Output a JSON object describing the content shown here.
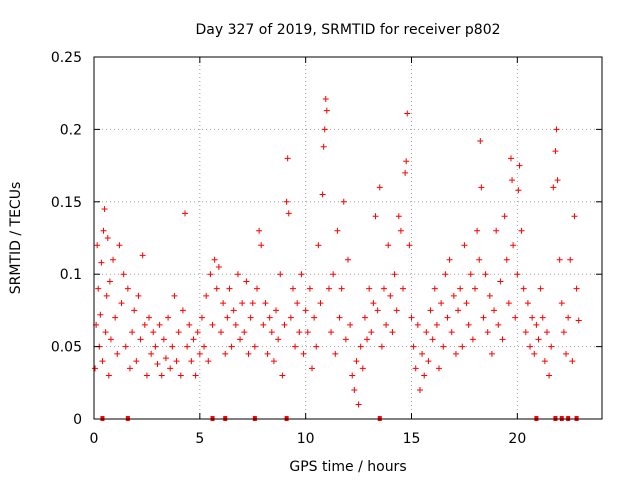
{
  "chart_data": {
    "type": "scatter",
    "title": "Day 327 of 2019, SRMTID for receiver p802",
    "xlabel": "GPS time / hours",
    "ylabel": "SRMTID / TECUs",
    "xlim": [
      0,
      24
    ],
    "ylim": [
      0,
      0.25
    ],
    "x_ticks": [
      0,
      5,
      10,
      15,
      20
    ],
    "x_tick_labels": [
      "0",
      "5",
      "10",
      "15",
      "20"
    ],
    "y_ticks": [
      0,
      0.05,
      0.1,
      0.15,
      0.2,
      0.25
    ],
    "y_tick_labels": [
      "0",
      "0.05",
      "0.1",
      "0.15",
      "0.2",
      "0.25"
    ],
    "grid": true,
    "marker": "+",
    "color": "#ff0000",
    "series": [
      {
        "name": "SRMTID",
        "points": [
          [
            0.05,
            0.035
          ],
          [
            0.1,
            0.065
          ],
          [
            0.15,
            0.12
          ],
          [
            0.2,
            0.09
          ],
          [
            0.25,
            0.05
          ],
          [
            0.3,
            0.072
          ],
          [
            0.35,
            0.108
          ],
          [
            0.4,
            0.04
          ],
          [
            0.45,
            0.13
          ],
          [
            0.5,
            0.145
          ],
          [
            0.55,
            0.06
          ],
          [
            0.6,
            0.085
          ],
          [
            0.65,
            0.125
          ],
          [
            0.7,
            0.03
          ],
          [
            0.75,
            0.095
          ],
          [
            0.8,
            0.055
          ],
          [
            0.9,
            0.11
          ],
          [
            1.0,
            0.07
          ],
          [
            1.1,
            0.045
          ],
          [
            1.2,
            0.12
          ],
          [
            1.3,
            0.08
          ],
          [
            1.4,
            0.1
          ],
          [
            1.5,
            0.05
          ],
          [
            1.6,
            0.09
          ],
          [
            1.7,
            0.035
          ],
          [
            1.8,
            0.06
          ],
          [
            1.9,
            0.075
          ],
          [
            2.0,
            0.04
          ],
          [
            2.1,
            0.085
          ],
          [
            2.2,
            0.055
          ],
          [
            2.3,
            0.113
          ],
          [
            2.4,
            0.065
          ],
          [
            2.5,
            0.03
          ],
          [
            2.6,
            0.07
          ],
          [
            2.7,
            0.045
          ],
          [
            2.8,
            0.06
          ],
          [
            2.9,
            0.05
          ],
          [
            3.0,
            0.038
          ],
          [
            3.1,
            0.065
          ],
          [
            3.2,
            0.03
          ],
          [
            3.3,
            0.055
          ],
          [
            3.4,
            0.042
          ],
          [
            3.5,
            0.07
          ],
          [
            3.6,
            0.035
          ],
          [
            3.7,
            0.05
          ],
          [
            3.8,
            0.085
          ],
          [
            3.9,
            0.04
          ],
          [
            4.0,
            0.06
          ],
          [
            4.1,
            0.03
          ],
          [
            4.2,
            0.075
          ],
          [
            4.3,
            0.142
          ],
          [
            4.4,
            0.05
          ],
          [
            4.5,
            0.065
          ],
          [
            4.6,
            0.04
          ],
          [
            4.7,
            0.055
          ],
          [
            4.8,
            0.03
          ],
          [
            4.9,
            0.06
          ],
          [
            5.0,
            0.045
          ],
          [
            5.1,
            0.07
          ],
          [
            5.2,
            0.05
          ],
          [
            5.3,
            0.085
          ],
          [
            5.4,
            0.04
          ],
          [
            5.5,
            0.1
          ],
          [
            5.6,
            0.065
          ],
          [
            5.7,
            0.11
          ],
          [
            5.8,
            0.09
          ],
          [
            5.9,
            0.105
          ],
          [
            6.0,
            0.06
          ],
          [
            6.1,
            0.08
          ],
          [
            6.2,
            0.045
          ],
          [
            6.3,
            0.07
          ],
          [
            6.4,
            0.09
          ],
          [
            6.5,
            0.05
          ],
          [
            6.6,
            0.075
          ],
          [
            6.7,
            0.065
          ],
          [
            6.8,
            0.1
          ],
          [
            6.9,
            0.055
          ],
          [
            7.0,
            0.08
          ],
          [
            7.1,
            0.06
          ],
          [
            7.2,
            0.095
          ],
          [
            7.3,
            0.045
          ],
          [
            7.4,
            0.07
          ],
          [
            7.5,
            0.08
          ],
          [
            7.6,
            0.05
          ],
          [
            7.7,
            0.09
          ],
          [
            7.8,
            0.13
          ],
          [
            7.9,
            0.12
          ],
          [
            8.0,
            0.065
          ],
          [
            8.1,
            0.08
          ],
          [
            8.2,
            0.045
          ],
          [
            8.3,
            0.07
          ],
          [
            8.4,
            0.06
          ],
          [
            8.5,
            0.04
          ],
          [
            8.6,
            0.075
          ],
          [
            8.7,
            0.055
          ],
          [
            8.8,
            0.1
          ],
          [
            8.9,
            0.03
          ],
          [
            9.0,
            0.065
          ],
          [
            9.1,
            0.15
          ],
          [
            9.15,
            0.18
          ],
          [
            9.2,
            0.142
          ],
          [
            9.3,
            0.07
          ],
          [
            9.4,
            0.09
          ],
          [
            9.5,
            0.05
          ],
          [
            9.6,
            0.08
          ],
          [
            9.7,
            0.06
          ],
          [
            9.8,
            0.1
          ],
          [
            9.9,
            0.045
          ],
          [
            10.0,
            0.075
          ],
          [
            10.1,
            0.06
          ],
          [
            10.2,
            0.09
          ],
          [
            10.3,
            0.035
          ],
          [
            10.4,
            0.07
          ],
          [
            10.5,
            0.05
          ],
          [
            10.6,
            0.12
          ],
          [
            10.7,
            0.08
          ],
          [
            10.8,
            0.155
          ],
          [
            10.85,
            0.188
          ],
          [
            10.9,
            0.2
          ],
          [
            10.95,
            0.221
          ],
          [
            11.0,
            0.213
          ],
          [
            11.1,
            0.09
          ],
          [
            11.2,
            0.06
          ],
          [
            11.3,
            0.1
          ],
          [
            11.4,
            0.045
          ],
          [
            11.5,
            0.13
          ],
          [
            11.6,
            0.07
          ],
          [
            11.7,
            0.09
          ],
          [
            11.8,
            0.15
          ],
          [
            11.9,
            0.055
          ],
          [
            12.0,
            0.11
          ],
          [
            12.1,
            0.065
          ],
          [
            12.2,
            0.03
          ],
          [
            12.3,
            0.02
          ],
          [
            12.4,
            0.04
          ],
          [
            12.5,
            0.01
          ],
          [
            12.6,
            0.05
          ],
          [
            12.7,
            0.035
          ],
          [
            12.8,
            0.07
          ],
          [
            12.9,
            0.055
          ],
          [
            13.0,
            0.09
          ],
          [
            13.1,
            0.06
          ],
          [
            13.2,
            0.08
          ],
          [
            13.3,
            0.14
          ],
          [
            13.4,
            0.075
          ],
          [
            13.5,
            0.16
          ],
          [
            13.6,
            0.05
          ],
          [
            13.7,
            0.09
          ],
          [
            13.8,
            0.065
          ],
          [
            13.9,
            0.12
          ],
          [
            14.0,
            0.085
          ],
          [
            14.1,
            0.06
          ],
          [
            14.2,
            0.1
          ],
          [
            14.3,
            0.075
          ],
          [
            14.4,
            0.14
          ],
          [
            14.5,
            0.13
          ],
          [
            14.6,
            0.09
          ],
          [
            14.7,
            0.17
          ],
          [
            14.75,
            0.178
          ],
          [
            14.8,
            0.211
          ],
          [
            14.9,
            0.12
          ],
          [
            15.0,
            0.07
          ],
          [
            15.1,
            0.05
          ],
          [
            15.2,
            0.035
          ],
          [
            15.3,
            0.065
          ],
          [
            15.4,
            0.02
          ],
          [
            15.5,
            0.045
          ],
          [
            15.6,
            0.03
          ],
          [
            15.7,
            0.06
          ],
          [
            15.8,
            0.04
          ],
          [
            15.9,
            0.075
          ],
          [
            16.0,
            0.055
          ],
          [
            16.1,
            0.09
          ],
          [
            16.2,
            0.065
          ],
          [
            16.3,
            0.035
          ],
          [
            16.4,
            0.08
          ],
          [
            16.5,
            0.05
          ],
          [
            16.6,
            0.1
          ],
          [
            16.7,
            0.07
          ],
          [
            16.8,
            0.11
          ],
          [
            16.9,
            0.06
          ],
          [
            17.0,
            0.085
          ],
          [
            17.1,
            0.045
          ],
          [
            17.2,
            0.075
          ],
          [
            17.3,
            0.09
          ],
          [
            17.4,
            0.05
          ],
          [
            17.5,
            0.12
          ],
          [
            17.6,
            0.08
          ],
          [
            17.7,
            0.065
          ],
          [
            17.8,
            0.1
          ],
          [
            17.9,
            0.055
          ],
          [
            18.0,
            0.09
          ],
          [
            18.1,
            0.13
          ],
          [
            18.2,
            0.11
          ],
          [
            18.25,
            0.192
          ],
          [
            18.3,
            0.16
          ],
          [
            18.4,
            0.07
          ],
          [
            18.5,
            0.1
          ],
          [
            18.6,
            0.06
          ],
          [
            18.7,
            0.085
          ],
          [
            18.8,
            0.045
          ],
          [
            18.9,
            0.075
          ],
          [
            19.0,
            0.13
          ],
          [
            19.1,
            0.065
          ],
          [
            19.2,
            0.095
          ],
          [
            19.3,
            0.055
          ],
          [
            19.4,
            0.14
          ],
          [
            19.5,
            0.11
          ],
          [
            19.6,
            0.08
          ],
          [
            19.7,
            0.18
          ],
          [
            19.75,
            0.165
          ],
          [
            19.8,
            0.12
          ],
          [
            19.9,
            0.07
          ],
          [
            20.0,
            0.1
          ],
          [
            20.05,
            0.158
          ],
          [
            20.1,
            0.175
          ],
          [
            20.2,
            0.13
          ],
          [
            20.3,
            0.09
          ],
          [
            20.4,
            0.06
          ],
          [
            20.5,
            0.08
          ],
          [
            20.6,
            0.05
          ],
          [
            20.7,
            0.07
          ],
          [
            20.8,
            0.045
          ],
          [
            20.9,
            0.065
          ],
          [
            21.0,
            0.055
          ],
          [
            21.1,
            0.09
          ],
          [
            21.2,
            0.07
          ],
          [
            21.3,
            0.04
          ],
          [
            21.4,
            0.06
          ],
          [
            21.5,
            0.03
          ],
          [
            21.6,
            0.05
          ],
          [
            21.7,
            0.16
          ],
          [
            21.8,
            0.185
          ],
          [
            21.85,
            0.2
          ],
          [
            21.9,
            0.165
          ],
          [
            22.0,
            0.11
          ],
          [
            22.1,
            0.08
          ],
          [
            22.2,
            0.06
          ],
          [
            22.3,
            0.045
          ],
          [
            22.4,
            0.07
          ],
          [
            22.5,
            0.11
          ],
          [
            22.6,
            0.04
          ],
          [
            22.7,
            0.14
          ],
          [
            22.8,
            0.09
          ],
          [
            22.9,
            0.068
          ]
        ]
      }
    ],
    "zero_markers_x": [
      0.4,
      1.6,
      5.6,
      6.2,
      7.6,
      9.1,
      13.5,
      20.9,
      21.8,
      22.1,
      22.4,
      22.8
    ]
  }
}
